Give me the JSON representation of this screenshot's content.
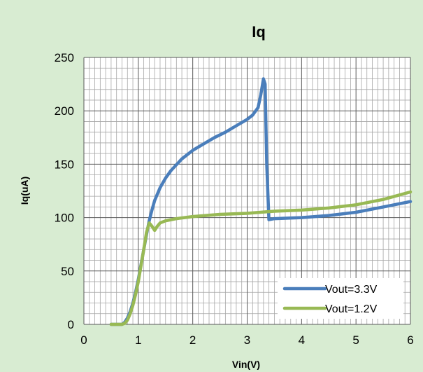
{
  "chart_data": {
    "type": "line",
    "title": "Iq",
    "xlabel": "Vin(V)",
    "ylabel": "Iq(uA)",
    "xlim": [
      0,
      6
    ],
    "ylim": [
      0,
      250
    ],
    "x_ticks": [
      "0",
      "1",
      "2",
      "3",
      "4",
      "5",
      "6"
    ],
    "y_ticks": [
      "0",
      "50",
      "100",
      "150",
      "200",
      "250"
    ],
    "grid": "major and minor",
    "legend_position": "bottom-right",
    "background_color": "#d8ecd2",
    "plot_area_color": "#ffffff",
    "series": [
      {
        "name": "Vout=3.3V",
        "color": "#4a7ebb",
        "points": [
          [
            0.5,
            0
          ],
          [
            0.6,
            0
          ],
          [
            0.7,
            0
          ],
          [
            0.75,
            2
          ],
          [
            0.8,
            6
          ],
          [
            0.85,
            12
          ],
          [
            0.9,
            20
          ],
          [
            0.95,
            30
          ],
          [
            1.0,
            42
          ],
          [
            1.05,
            56
          ],
          [
            1.1,
            70
          ],
          [
            1.15,
            84
          ],
          [
            1.2,
            97
          ],
          [
            1.25,
            107
          ],
          [
            1.3,
            116
          ],
          [
            1.4,
            128
          ],
          [
            1.5,
            137
          ],
          [
            1.6,
            144
          ],
          [
            1.8,
            155
          ],
          [
            2.0,
            163
          ],
          [
            2.2,
            169
          ],
          [
            2.4,
            175
          ],
          [
            2.6,
            180
          ],
          [
            2.8,
            186
          ],
          [
            3.0,
            192
          ],
          [
            3.1,
            196
          ],
          [
            3.2,
            203
          ],
          [
            3.25,
            215
          ],
          [
            3.3,
            230
          ],
          [
            3.33,
            225
          ],
          [
            3.36,
            150
          ],
          [
            3.4,
            98
          ],
          [
            3.5,
            99
          ],
          [
            4.0,
            100
          ],
          [
            4.5,
            102
          ],
          [
            5.0,
            105
          ],
          [
            5.5,
            110
          ],
          [
            6.0,
            115
          ]
        ]
      },
      {
        "name": "Vout=1.2V",
        "color": "#98b954",
        "points": [
          [
            0.5,
            0
          ],
          [
            0.6,
            0
          ],
          [
            0.7,
            0
          ],
          [
            0.75,
            1
          ],
          [
            0.8,
            4
          ],
          [
            0.85,
            10
          ],
          [
            0.9,
            18
          ],
          [
            0.95,
            28
          ],
          [
            1.0,
            40
          ],
          [
            1.05,
            55
          ],
          [
            1.1,
            70
          ],
          [
            1.15,
            86
          ],
          [
            1.2,
            95
          ],
          [
            1.25,
            92
          ],
          [
            1.3,
            88
          ],
          [
            1.35,
            92
          ],
          [
            1.4,
            95
          ],
          [
            1.5,
            97
          ],
          [
            1.7,
            99
          ],
          [
            2.0,
            101
          ],
          [
            2.5,
            103
          ],
          [
            3.0,
            104
          ],
          [
            3.5,
            106
          ],
          [
            4.0,
            107
          ],
          [
            4.5,
            109
          ],
          [
            5.0,
            112
          ],
          [
            5.5,
            117
          ],
          [
            6.0,
            124
          ]
        ]
      }
    ]
  }
}
